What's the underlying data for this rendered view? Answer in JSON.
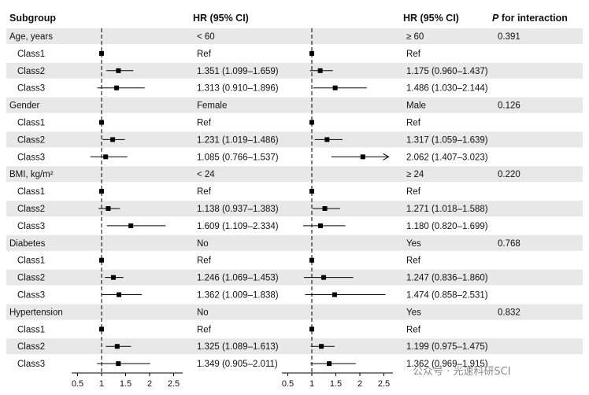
{
  "chart_data": {
    "type": "forest",
    "headers": {
      "subgroup": "Subgroup",
      "hr_left": "HR (95% CI)",
      "hr_right": "HR (95% CI)",
      "p_italic": "P",
      "p_rest": " for interaction"
    },
    "x_ticks": [
      "0.5",
      "1",
      "1.5",
      "2",
      "2.5"
    ],
    "x_tick_values": [
      0.5,
      1,
      1.5,
      2,
      2.5
    ],
    "reference_line": 1,
    "groups": [
      {
        "label": "Age, years",
        "left_level": "< 60",
        "right_level": "≥ 60",
        "p": "0.391",
        "rows": [
          {
            "label": "Class1",
            "left": {
              "text": "Ref",
              "hr": 1
            },
            "right": {
              "text": "Ref",
              "hr": 1
            }
          },
          {
            "label": "Class2",
            "left": {
              "text": "1.351 (1.099–1.659)",
              "hr": 1.351,
              "lo": 1.099,
              "hi": 1.659
            },
            "right": {
              "text": "1.175 (0.960–1.437)",
              "hr": 1.175,
              "lo": 0.96,
              "hi": 1.437
            }
          },
          {
            "label": "Class3",
            "left": {
              "text": "1.313 (0.910–1.896)",
              "hr": 1.313,
              "lo": 0.91,
              "hi": 1.896
            },
            "right": {
              "text": "1.486 (1.030–2.144)",
              "hr": 1.486,
              "lo": 1.03,
              "hi": 2.144
            }
          }
        ]
      },
      {
        "label": "Gender",
        "left_level": "Female",
        "right_level": "Male",
        "p": "0.126",
        "rows": [
          {
            "label": "Class1",
            "left": {
              "text": "Ref",
              "hr": 1
            },
            "right": {
              "text": "Ref",
              "hr": 1
            }
          },
          {
            "label": "Class2",
            "left": {
              "text": "1.231 (1.019–1.486)",
              "hr": 1.231,
              "lo": 1.019,
              "hi": 1.486
            },
            "right": {
              "text": "1.317 (1.059–1.639)",
              "hr": 1.317,
              "lo": 1.059,
              "hi": 1.639
            }
          },
          {
            "label": "Class3",
            "left": {
              "text": "1.085 (0.766–1.537)",
              "hr": 1.085,
              "lo": 0.766,
              "hi": 1.537
            },
            "right": {
              "text": "2.062 (1.407–3.023)",
              "hr": 2.062,
              "lo": 1.407,
              "hi": 3.023
            }
          }
        ]
      },
      {
        "label": "BMI, kg/m²",
        "left_level": "< 24",
        "right_level": "≥ 24",
        "p": "0.220",
        "rows": [
          {
            "label": "Class1",
            "left": {
              "text": "Ref",
              "hr": 1
            },
            "right": {
              "text": "Ref",
              "hr": 1
            }
          },
          {
            "label": "Class2",
            "left": {
              "text": "1.138 (0.937–1.383)",
              "hr": 1.138,
              "lo": 0.937,
              "hi": 1.383
            },
            "right": {
              "text": "1.271 (1.018–1.588)",
              "hr": 1.271,
              "lo": 1.018,
              "hi": 1.588
            }
          },
          {
            "label": "Class3",
            "left": {
              "text": "1.609 (1.109–2.334)",
              "hr": 1.609,
              "lo": 1.109,
              "hi": 2.334
            },
            "right": {
              "text": "1.180 (0.820–1.699)",
              "hr": 1.18,
              "lo": 0.82,
              "hi": 1.699
            }
          }
        ]
      },
      {
        "label": "Diabetes",
        "left_level": "No",
        "right_level": "Yes",
        "p": "0.768",
        "rows": [
          {
            "label": "Class1",
            "left": {
              "text": "Ref",
              "hr": 1
            },
            "right": {
              "text": "Ref",
              "hr": 1
            }
          },
          {
            "label": "Class2",
            "left": {
              "text": "1.246 (1.069–1.453)",
              "hr": 1.246,
              "lo": 1.069,
              "hi": 1.453
            },
            "right": {
              "text": "1.247 (0.836–1.860)",
              "hr": 1.247,
              "lo": 0.836,
              "hi": 1.86
            }
          },
          {
            "label": "Class3",
            "left": {
              "text": "1.362 (1.009–1.838)",
              "hr": 1.362,
              "lo": 1.009,
              "hi": 1.838
            },
            "right": {
              "text": "1.474 (0.858–2.531)",
              "hr": 1.474,
              "lo": 0.858,
              "hi": 2.531
            }
          }
        ]
      },
      {
        "label": "Hypertension",
        "left_level": "No",
        "right_level": "Yes",
        "p": "0.832",
        "rows": [
          {
            "label": "Class1",
            "left": {
              "text": "Ref",
              "hr": 1
            },
            "right": {
              "text": "Ref",
              "hr": 1
            }
          },
          {
            "label": "Class2",
            "left": {
              "text": "1.325 (1.089–1.613)",
              "hr": 1.325,
              "lo": 1.089,
              "hi": 1.613
            },
            "right": {
              "text": "1.199 (0.975–1.475)",
              "hr": 1.199,
              "lo": 0.975,
              "hi": 1.475
            }
          },
          {
            "label": "Class3",
            "left": {
              "text": "1.349 (0.905–2.011)",
              "hr": 1.349,
              "lo": 0.905,
              "hi": 2.011
            },
            "right": {
              "text": "1.362 (0.969–1.915)",
              "hr": 1.362,
              "lo": 0.969,
              "hi": 1.915
            }
          }
        ]
      }
    ],
    "colors": {
      "stripe": "#e8e8e8",
      "marker": "#000000",
      "line": "#000000"
    }
  },
  "watermark": "公众号 · 光速科研SCI"
}
